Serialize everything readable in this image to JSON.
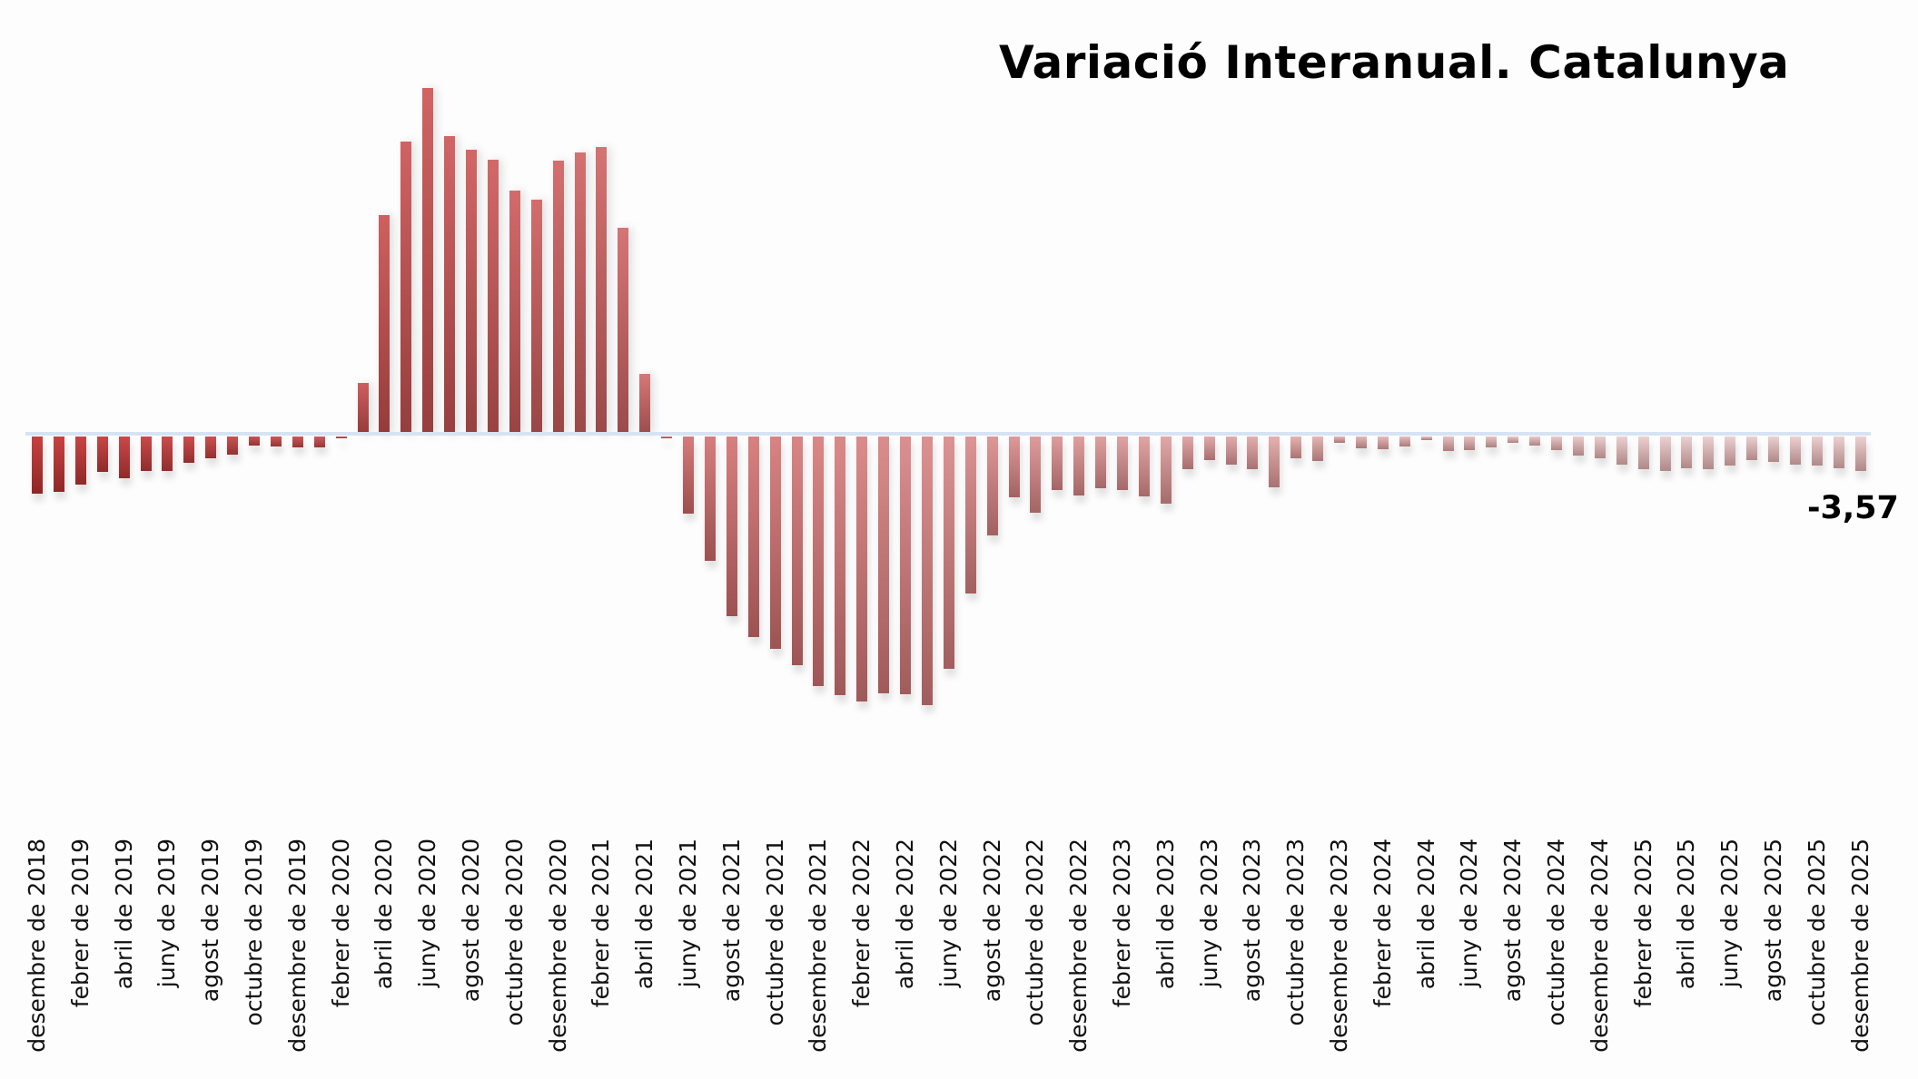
{
  "chart_data": {
    "type": "bar",
    "title": "Variació Interanual. Catalunya",
    "xlabel": "",
    "ylabel": "",
    "grid": false,
    "legend": null,
    "ylim": [
      -32,
      38
    ],
    "annotations": [
      {
        "text": "-3,57",
        "target": "desembre de 2025"
      }
    ],
    "tick_labels": [
      "desembre de 2018",
      "febrer de 2019",
      "abril de 2019",
      "juny de 2019",
      "agost de 2019",
      "octubre de 2019",
      "desembre de 2019",
      "febrer de 2020",
      "abril de 2020",
      "juny de 2020",
      "agost de 2020",
      "octubre de 2020",
      "desembre de 2020",
      "febrer de 2021",
      "abril de 2021",
      "juny de 2021",
      "agost de 2021",
      "octubre de 2021",
      "desembre de 2021",
      "febrer de 2022",
      "abril de 2022",
      "juny de 2022",
      "agost de 2022",
      "octubre de 2022",
      "desembre de 2022",
      "febrer de 2023",
      "abril de 2023",
      "juny de 2023",
      "agost de 2023",
      "octubre de 2023",
      "desembre de 2023",
      "febrer de 2024",
      "abril de 2024",
      "juny de 2024",
      "agost de 2024",
      "octubre de 2024",
      "desembre de 2024",
      "febrer de 2025",
      "abril de 2025",
      "juny de 2025",
      "agost de 2025",
      "octubre de 2025",
      "desembre de 2025"
    ],
    "categories": [
      "2018-12",
      "2019-01",
      "2019-02",
      "2019-03",
      "2019-04",
      "2019-05",
      "2019-06",
      "2019-07",
      "2019-08",
      "2019-09",
      "2019-10",
      "2019-11",
      "2019-12",
      "2020-01",
      "2020-02",
      "2020-03",
      "2020-04",
      "2020-05",
      "2020-06",
      "2020-07",
      "2020-08",
      "2020-09",
      "2020-10",
      "2020-11",
      "2020-12",
      "2021-01",
      "2021-02",
      "2021-03",
      "2021-04",
      "2021-05",
      "2021-06",
      "2021-07",
      "2021-08",
      "2021-09",
      "2021-10",
      "2021-11",
      "2021-12",
      "2022-01",
      "2022-02",
      "2022-03",
      "2022-04",
      "2022-05",
      "2022-06",
      "2022-07",
      "2022-08",
      "2022-09",
      "2022-10",
      "2022-11",
      "2022-12",
      "2023-01",
      "2023-02",
      "2023-03",
      "2023-04",
      "2023-05",
      "2023-06",
      "2023-07",
      "2023-08",
      "2023-09",
      "2023-10",
      "2023-11",
      "2023-12",
      "2024-01",
      "2024-02",
      "2024-03",
      "2024-04",
      "2024-05",
      "2024-06",
      "2024-07",
      "2024-08",
      "2024-09",
      "2024-10",
      "2024-11",
      "2024-12",
      "2025-01",
      "2025-02",
      "2025-03",
      "2025-04",
      "2025-05",
      "2025-06",
      "2025-07",
      "2025-08",
      "2025-09",
      "2025-10",
      "2025-11",
      "2025-12"
    ],
    "values": [
      -5.9,
      -5.7,
      -5.0,
      -3.7,
      -4.3,
      -3.6,
      -3.6,
      -2.7,
      -2.3,
      -1.9,
      -0.9,
      -1.0,
      -1.1,
      -1.1,
      -0.2,
      5.4,
      22.7,
      30.4,
      35.9,
      30.9,
      29.5,
      28.5,
      25.3,
      24.3,
      28.4,
      29.2,
      29.8,
      21.4,
      6.3,
      -0.2,
      -8.0,
      -12.9,
      -18.6,
      -20.8,
      -22.0,
      -23.7,
      -25.8,
      -26.8,
      -27.4,
      -26.6,
      -26.7,
      -27.8,
      -24.1,
      -16.3,
      -10.2,
      -6.3,
      -7.9,
      -5.5,
      -6.1,
      -5.4,
      -5.5,
      -6.2,
      -7.0,
      -3.4,
      -2.4,
      -2.9,
      -3.4,
      -5.3,
      -2.3,
      -2.5,
      -0.7,
      -1.2,
      -1.3,
      -1.0,
      -0.4,
      -1.5,
      -1.4,
      -1.1,
      -0.7,
      -0.9,
      -1.4,
      -2.0,
      -2.3,
      -2.9,
      -3.4,
      -3.6,
      -3.3,
      -3.4,
      -3.0,
      -2.4,
      -2.6,
      -2.9,
      -3.0,
      -3.3,
      -3.57
    ]
  },
  "colors": {
    "bar_dark": "#b83030",
    "bar_mid": "#d06060",
    "bar_pale": "#e6c6c6",
    "zero_line": "#d6e3f3",
    "text": "#000000"
  },
  "last_value_label": "-3,57"
}
